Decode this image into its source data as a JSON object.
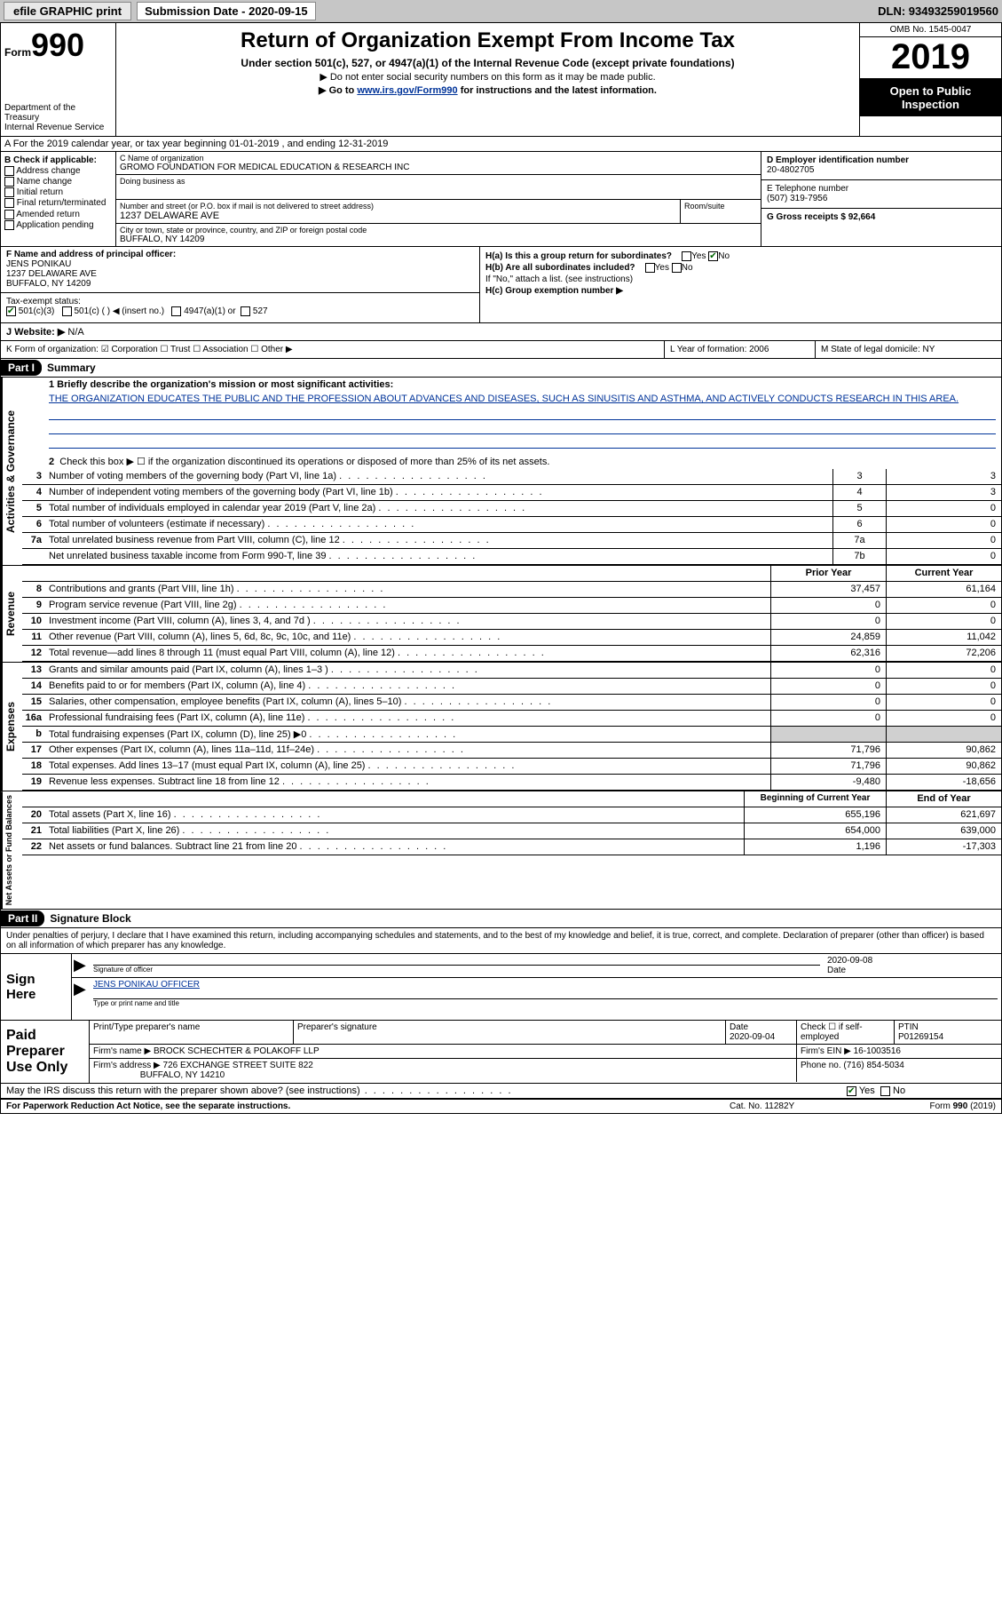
{
  "topbar": {
    "efile": "efile GRAPHIC print",
    "subdate_label": "Submission Date - 2020-09-15",
    "dln": "DLN: 93493259019560"
  },
  "header": {
    "form_label": "Form",
    "form_num": "990",
    "dept": "Department of the Treasury\nInternal Revenue Service",
    "title": "Return of Organization Exempt From Income Tax",
    "sub": "Under section 501(c), 527, or 4947(a)(1) of the Internal Revenue Code (except private foundations)",
    "note1": "▶ Do not enter social security numbers on this form as it may be made public.",
    "note2_pre": "▶ Go to ",
    "note2_link": "www.irs.gov/Form990",
    "note2_post": " for instructions and the latest information.",
    "omb": "OMB No. 1545-0047",
    "year": "2019",
    "open": "Open to Public Inspection"
  },
  "row_a": "A For the 2019 calendar year, or tax year beginning 01-01-2019   , and ending 12-31-2019",
  "col_b": {
    "label": "B Check if applicable:",
    "opts": [
      "Address change",
      "Name change",
      "Initial return",
      "Final return/terminated",
      "Amended return",
      "Application pending"
    ]
  },
  "col_c": {
    "name_label": "C Name of organization",
    "name": "GROMO FOUNDATION FOR MEDICAL EDUCATION & RESEARCH INC",
    "dba_label": "Doing business as",
    "street_label": "Number and street (or P.O. box if mail is not delivered to street address)",
    "street": "1237 DELAWARE AVE",
    "room_label": "Room/suite",
    "city_label": "City or town, state or province, country, and ZIP or foreign postal code",
    "city": "BUFFALO, NY  14209"
  },
  "col_d": {
    "label": "D Employer identification number",
    "val": "20-4802705"
  },
  "col_e": {
    "label": "E Telephone number",
    "val": "(507) 319-7956"
  },
  "col_g": {
    "label": "G Gross receipts $ 92,664"
  },
  "col_f": {
    "label": "F  Name and address of principal officer:",
    "name": "JENS PONIKAU",
    "addr1": "1237 DELAWARE AVE",
    "addr2": "BUFFALO, NY  14209",
    "tax_label": "Tax-exempt status:",
    "s1": "501(c)(3)",
    "s2": "501(c) (  ) ◀ (insert no.)",
    "s3": "4947(a)(1) or",
    "s4": "527"
  },
  "col_h": {
    "ha": "H(a)  Is this a group return for subordinates?",
    "hb": "H(b)  Are all subordinates included?",
    "hb_note": "If \"No,\" attach a list. (see instructions)",
    "hc": "H(c)  Group exemption number ▶",
    "yes": "Yes",
    "no": "No"
  },
  "row_j": {
    "label": "J   Website: ▶",
    "val": "N/A"
  },
  "row_k": {
    "left": "K Form of organization:   ☑ Corporation  ☐ Trust  ☐ Association  ☐ Other ▶",
    "mid": "L Year of formation: 2006",
    "right": "M State of legal domicile: NY"
  },
  "part1": {
    "label": "Part I",
    "title": "Summary",
    "line1_label": "1  Briefly describe the organization's mission or most significant activities:",
    "line1_text": "THE ORGANIZATION EDUCATES THE PUBLIC AND THE PROFESSION ABOUT ADVANCES AND DISEASES, SUCH AS SINUSITIS AND ASTHMA, AND ACTIVELY CONDUCTS RESEARCH IN THIS AREA.",
    "line2": "Check this box ▶ ☐  if the organization discontinued its operations or disposed of more than 25% of its net assets.",
    "lines_ag": [
      {
        "n": "3",
        "d": "Number of voting members of the governing body (Part VI, line 1a)",
        "box": "3",
        "v": "3"
      },
      {
        "n": "4",
        "d": "Number of independent voting members of the governing body (Part VI, line 1b)",
        "box": "4",
        "v": "3"
      },
      {
        "n": "5",
        "d": "Total number of individuals employed in calendar year 2019 (Part V, line 2a)",
        "box": "5",
        "v": "0"
      },
      {
        "n": "6",
        "d": "Total number of volunteers (estimate if necessary)",
        "box": "6",
        "v": "0"
      },
      {
        "n": "7a",
        "d": "Total unrelated business revenue from Part VIII, column (C), line 12",
        "box": "7a",
        "v": "0"
      },
      {
        "n": "",
        "d": "Net unrelated business taxable income from Form 990-T, line 39",
        "box": "7b",
        "v": "0"
      }
    ],
    "hdr_prior": "Prior Year",
    "hdr_curr": "Current Year",
    "revenue": [
      {
        "n": "8",
        "d": "Contributions and grants (Part VIII, line 1h)",
        "p": "37,457",
        "c": "61,164"
      },
      {
        "n": "9",
        "d": "Program service revenue (Part VIII, line 2g)",
        "p": "0",
        "c": "0"
      },
      {
        "n": "10",
        "d": "Investment income (Part VIII, column (A), lines 3, 4, and 7d )",
        "p": "0",
        "c": "0"
      },
      {
        "n": "11",
        "d": "Other revenue (Part VIII, column (A), lines 5, 6d, 8c, 9c, 10c, and 11e)",
        "p": "24,859",
        "c": "11,042"
      },
      {
        "n": "12",
        "d": "Total revenue—add lines 8 through 11 (must equal Part VIII, column (A), line 12)",
        "p": "62,316",
        "c": "72,206"
      }
    ],
    "expenses": [
      {
        "n": "13",
        "d": "Grants and similar amounts paid (Part IX, column (A), lines 1–3 )",
        "p": "0",
        "c": "0"
      },
      {
        "n": "14",
        "d": "Benefits paid to or for members (Part IX, column (A), line 4)",
        "p": "0",
        "c": "0"
      },
      {
        "n": "15",
        "d": "Salaries, other compensation, employee benefits (Part IX, column (A), lines 5–10)",
        "p": "0",
        "c": "0"
      },
      {
        "n": "16a",
        "d": "Professional fundraising fees (Part IX, column (A), line 11e)",
        "p": "0",
        "c": "0"
      },
      {
        "n": "b",
        "d": "Total fundraising expenses (Part IX, column (D), line 25) ▶0",
        "p": "",
        "c": "",
        "shade": true
      },
      {
        "n": "17",
        "d": "Other expenses (Part IX, column (A), lines 11a–11d, 11f–24e)",
        "p": "71,796",
        "c": "90,862"
      },
      {
        "n": "18",
        "d": "Total expenses. Add lines 13–17 (must equal Part IX, column (A), line 25)",
        "p": "71,796",
        "c": "90,862"
      },
      {
        "n": "19",
        "d": "Revenue less expenses. Subtract line 18 from line 12",
        "p": "-9,480",
        "c": "-18,656"
      }
    ],
    "hdr_boy": "Beginning of Current Year",
    "hdr_eoy": "End of Year",
    "net": [
      {
        "n": "20",
        "d": "Total assets (Part X, line 16)",
        "p": "655,196",
        "c": "621,697"
      },
      {
        "n": "21",
        "d": "Total liabilities (Part X, line 26)",
        "p": "654,000",
        "c": "639,000"
      },
      {
        "n": "22",
        "d": "Net assets or fund balances. Subtract line 21 from line 20",
        "p": "1,196",
        "c": "-17,303"
      }
    ],
    "side_ag": "Activities & Governance",
    "side_rev": "Revenue",
    "side_exp": "Expenses",
    "side_net": "Net Assets or Fund Balances"
  },
  "part2": {
    "label": "Part II",
    "title": "Signature Block",
    "intro": "Under penalties of perjury, I declare that I have examined this return, including accompanying schedules and statements, and to the best of my knowledge and belief, it is true, correct, and complete. Declaration of preparer (other than officer) is based on all information of which preparer has any knowledge.",
    "sign_here": "Sign Here",
    "sig_lab": "Signature of officer",
    "sig_date": "2020-09-08",
    "date_lab": "Date",
    "name_lab": "Type or print name and title",
    "name_val": "JENS PONIKAU  OFFICER",
    "paid": "Paid Preparer Use Only",
    "p_name_lab": "Print/Type preparer's name",
    "p_sig_lab": "Preparer's signature",
    "p_date_lab": "Date",
    "p_date": "2020-09-04",
    "p_check": "Check ☐ if self-employed",
    "ptin_lab": "PTIN",
    "ptin": "P01269154",
    "firm_name_lab": "Firm's name     ▶",
    "firm_name": "BROCK SCHECHTER & POLAKOFF LLP",
    "firm_ein_lab": "Firm's EIN ▶",
    "firm_ein": "16-1003516",
    "firm_addr_lab": "Firm's address ▶",
    "firm_addr1": "726 EXCHANGE STREET SUITE 822",
    "firm_addr2": "BUFFALO, NY  14210",
    "phone_lab": "Phone no.",
    "phone": "(716) 854-5034",
    "discuss": "May the IRS discuss this return with the preparer shown above? (see instructions)",
    "yes": "Yes",
    "no": "No"
  },
  "footer": {
    "l": "For Paperwork Reduction Act Notice, see the separate instructions.",
    "m": "Cat. No. 11282Y",
    "r": "Form 990 (2019)"
  }
}
